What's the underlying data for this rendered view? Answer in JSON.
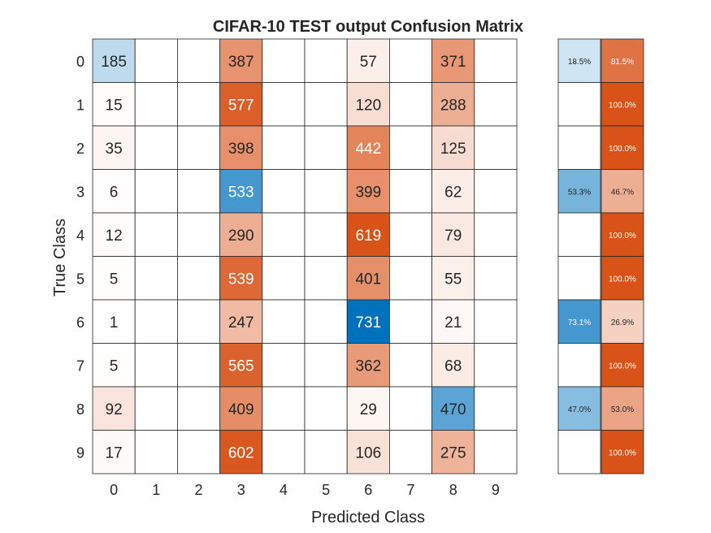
{
  "chart_data": {
    "type": "heatmap",
    "title": "CIFAR-10 TEST output Confusion Matrix",
    "xlabel": "Predicted Class",
    "ylabel": "True Class",
    "classes": [
      "0",
      "1",
      "2",
      "3",
      "4",
      "5",
      "6",
      "7",
      "8",
      "9"
    ],
    "matrix": [
      [
        185,
        0,
        0,
        387,
        0,
        0,
        57,
        0,
        371,
        0
      ],
      [
        15,
        0,
        0,
        577,
        0,
        0,
        120,
        0,
        288,
        0
      ],
      [
        35,
        0,
        0,
        398,
        0,
        0,
        442,
        0,
        125,
        0
      ],
      [
        6,
        0,
        0,
        533,
        0,
        0,
        399,
        0,
        62,
        0
      ],
      [
        12,
        0,
        0,
        290,
        0,
        0,
        619,
        0,
        79,
        0
      ],
      [
        5,
        0,
        0,
        539,
        0,
        0,
        401,
        0,
        55,
        0
      ],
      [
        1,
        0,
        0,
        247,
        0,
        0,
        731,
        0,
        21,
        0
      ],
      [
        5,
        0,
        0,
        565,
        0,
        0,
        362,
        0,
        68,
        0
      ],
      [
        92,
        0,
        0,
        409,
        0,
        0,
        29,
        0,
        470,
        0
      ],
      [
        17,
        0,
        0,
        602,
        0,
        0,
        106,
        0,
        275,
        0
      ]
    ],
    "row_summary": {
      "correct": [
        "18.5%",
        "",
        "",
        "53.3%",
        "",
        "",
        "73.1%",
        "",
        "47.0%",
        ""
      ],
      "incorrect": [
        "81.5%",
        "100.0%",
        "100.0%",
        "46.7%",
        "100.0%",
        "100.0%",
        "26.9%",
        "100.0%",
        "53.0%",
        "100.0%"
      ]
    },
    "colors": {
      "diagonal": "#0072bd",
      "off_diagonal": "#d95319",
      "background": "#ffffff"
    }
  }
}
